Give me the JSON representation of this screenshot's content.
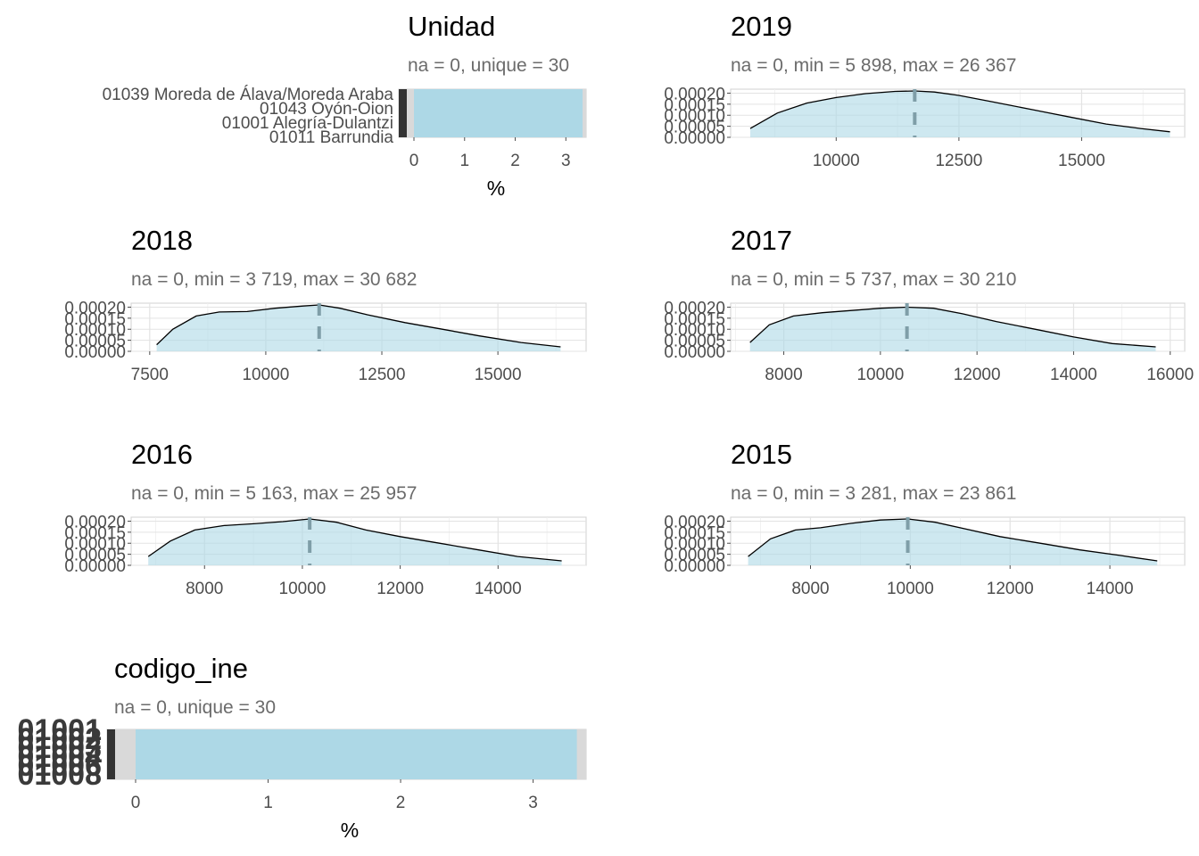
{
  "chart_data": [
    {
      "id": "unidad",
      "type": "bar",
      "orientation": "horizontal",
      "title": "Unidad",
      "subtitle": "na = 0, unique = 30",
      "xlabel": "%",
      "xlim": [
        0,
        3.4
      ],
      "x_ticks": [
        "0",
        "1",
        "2",
        "3"
      ],
      "value_percent": 3.33,
      "overlapping_category_labels": [
        "01039 Moreda de Álava/Moreda Araba",
        "01043 Oyón-Oion",
        "01001 Alegría-Dulantzi",
        "01011 Barrundia"
      ],
      "colors": {
        "bar": "#add8e6",
        "panel": "#d9d9d9",
        "marker": "#333333"
      }
    },
    {
      "id": "y2019",
      "type": "area",
      "title": "2019",
      "subtitle": "na = 0, min = 5 898, max = 26 367",
      "xlim": [
        7850,
        17100
      ],
      "ylim": [
        0,
        0.00021
      ],
      "x_ticks": [
        "10000",
        "12500",
        "15000"
      ],
      "y_ticks": [
        "0.00000",
        "0.00005",
        "0.00010",
        "0.00015",
        "0.00020"
      ],
      "median": 11600,
      "x": [
        8250,
        8800,
        9400,
        10000,
        10600,
        11200,
        11600,
        12000,
        12500,
        13200,
        14000,
        14800,
        15500,
        16200,
        16800
      ],
      "y": [
        4e-05,
        0.00011,
        0.000155,
        0.00018,
        0.000198,
        0.000208,
        0.00021,
        0.000205,
        0.00019,
        0.00016,
        0.000125,
        9e-05,
        6e-05,
        4e-05,
        2.5e-05
      ],
      "colors": {
        "fill": "#add8e6",
        "line": "#000000",
        "median": "#7f9ea8"
      }
    },
    {
      "id": "y2018",
      "type": "area",
      "title": "2018",
      "subtitle": "na = 0, min = 3 719, max = 30 682",
      "xlim": [
        7100,
        16900
      ],
      "ylim": [
        0,
        0.00021
      ],
      "x_ticks": [
        "7500",
        "10000",
        "12500",
        "15000"
      ],
      "y_ticks": [
        "0.00000",
        "0.00005",
        "0.00010",
        "0.00015",
        "0.00020"
      ],
      "median": 11150,
      "x": [
        7650,
        8000,
        8500,
        9000,
        9600,
        10200,
        10800,
        11150,
        11600,
        12200,
        13000,
        13800,
        14600,
        15500,
        16350
      ],
      "y": [
        3e-05,
        0.0001,
        0.00016,
        0.000178,
        0.00018,
        0.000195,
        0.000205,
        0.00021,
        0.000195,
        0.000165,
        0.00013,
        0.0001,
        7e-05,
        4e-05,
        2e-05
      ],
      "colors": {
        "fill": "#add8e6",
        "line": "#000000",
        "median": "#7f9ea8"
      }
    },
    {
      "id": "y2017",
      "type": "area",
      "title": "2017",
      "subtitle": "na = 0, min = 5 737, max = 30 210",
      "xlim": [
        6900,
        16300
      ],
      "ylim": [
        0,
        0.00021
      ],
      "x_ticks": [
        "8000",
        "10000",
        "12000",
        "14000",
        "16000"
      ],
      "y_ticks": [
        "0.00000",
        "0.00005",
        "0.00010",
        "0.00015",
        "0.00020"
      ],
      "median": 10550,
      "x": [
        7300,
        7700,
        8200,
        8800,
        9400,
        10000,
        10550,
        11100,
        11700,
        12400,
        13200,
        14000,
        14800,
        15700
      ],
      "y": [
        4e-05,
        0.00012,
        0.00016,
        0.000175,
        0.000185,
        0.000195,
        0.0002,
        0.000195,
        0.00017,
        0.000135,
        0.0001,
        6.5e-05,
        3.5e-05,
        2e-05
      ],
      "colors": {
        "fill": "#add8e6",
        "line": "#000000",
        "median": "#7f9ea8"
      }
    },
    {
      "id": "y2016",
      "type": "area",
      "title": "2016",
      "subtitle": "na = 0, min = 5 163, max = 25 957",
      "xlim": [
        6500,
        15800
      ],
      "ylim": [
        0,
        0.00021
      ],
      "x_ticks": [
        "8000",
        "10000",
        "12000",
        "14000"
      ],
      "y_ticks": [
        "0.00000",
        "0.00005",
        "0.00010",
        "0.00015",
        "0.00020"
      ],
      "median": 10150,
      "x": [
        6850,
        7300,
        7800,
        8400,
        9000,
        9600,
        10150,
        10700,
        11300,
        12000,
        12800,
        13600,
        14400,
        15300
      ],
      "y": [
        4e-05,
        0.00011,
        0.00016,
        0.00018,
        0.000188,
        0.000198,
        0.00021,
        0.000195,
        0.00016,
        0.00013,
        0.0001,
        7e-05,
        4e-05,
        2e-05
      ],
      "colors": {
        "fill": "#add8e6",
        "line": "#000000",
        "median": "#7f9ea8"
      }
    },
    {
      "id": "y2015",
      "type": "area",
      "title": "2015",
      "subtitle": "na = 0, min = 3 281, max = 23 861",
      "xlim": [
        6400,
        15500
      ],
      "ylim": [
        0,
        0.00021
      ],
      "x_ticks": [
        "8000",
        "10000",
        "12000",
        "14000"
      ],
      "y_ticks": [
        "0.00000",
        "0.00005",
        "0.00010",
        "0.00015",
        "0.00020"
      ],
      "median": 9950,
      "x": [
        6750,
        7200,
        7700,
        8200,
        8800,
        9400,
        9950,
        10500,
        11100,
        11800,
        12600,
        13400,
        14200,
        14950
      ],
      "y": [
        4e-05,
        0.00012,
        0.00016,
        0.00017,
        0.00019,
        0.000205,
        0.00021,
        0.000195,
        0.000165,
        0.00013,
        0.0001,
        7e-05,
        4.5e-05,
        2e-05
      ],
      "colors": {
        "fill": "#add8e6",
        "line": "#000000",
        "median": "#7f9ea8"
      }
    },
    {
      "id": "codigo",
      "type": "bar",
      "orientation": "horizontal",
      "title": "codigo_ine",
      "subtitle": "na = 0, unique = 30",
      "xlabel": "%",
      "xlim": [
        0,
        3.4
      ],
      "x_ticks": [
        "0",
        "1",
        "2",
        "3"
      ],
      "value_percent": 3.33,
      "overlapping_category_labels": [
        "01001",
        "01002",
        "01003",
        "01004",
        "01006",
        "01008"
      ],
      "colors": {
        "bar": "#add8e6",
        "panel": "#d9d9d9",
        "marker": "#333333"
      }
    }
  ]
}
